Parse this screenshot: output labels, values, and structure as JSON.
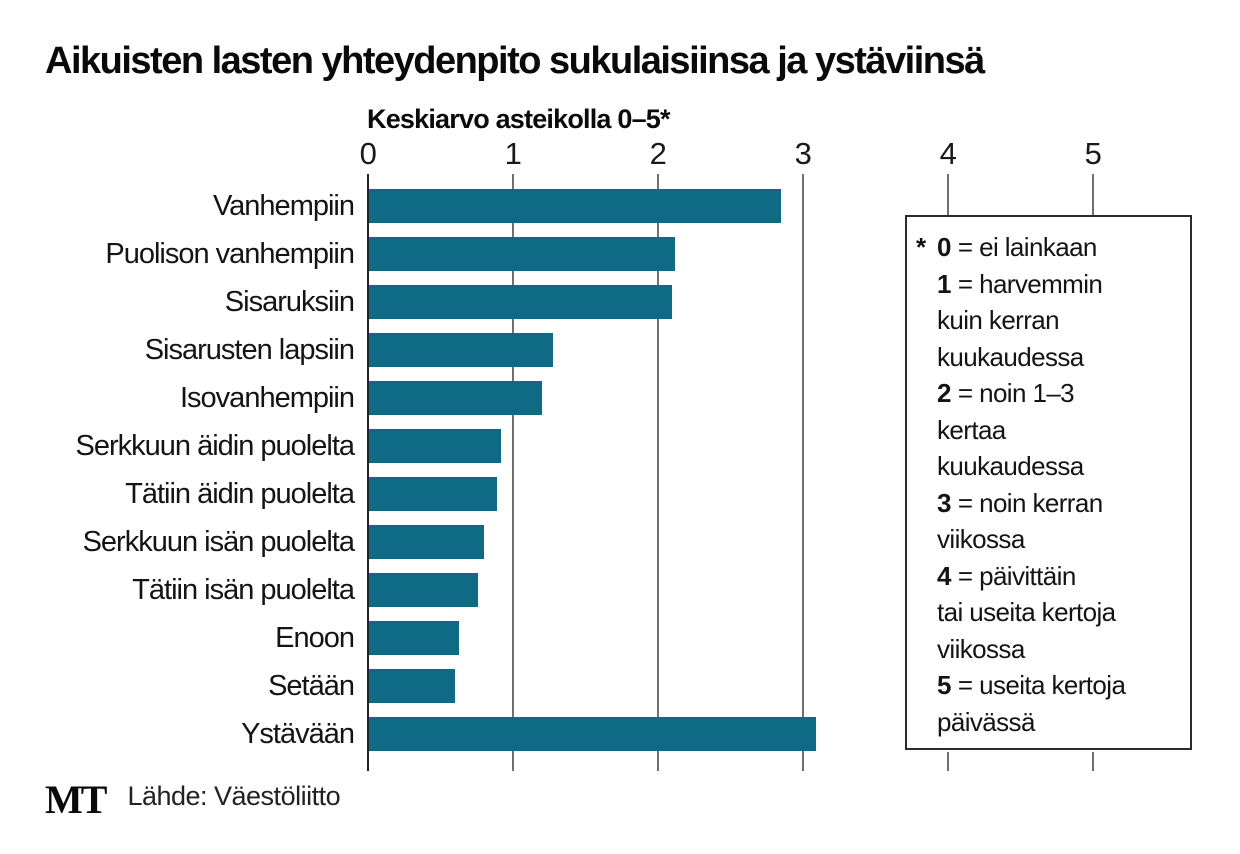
{
  "title": "Aikuisten lasten yhteydenpito sukulaisiinsa ja ystäviinsä",
  "chart_data": {
    "type": "bar",
    "orientation": "horizontal",
    "subtitle": "Keskiarvo asteikolla 0–5*",
    "categories": [
      "Vanhempiin",
      "Puolison vanhempiin",
      "Sisaruksiin",
      "Sisarusten lapsiin",
      "Isovanhempiin",
      "Serkkuun äidin puolelta",
      "Tätiin äidin puolelta",
      "Serkkuun isän puolelta",
      "Tätiin isän puolelta",
      "Enoon",
      "Setään",
      "Ystävään"
    ],
    "values": [
      2.84,
      2.11,
      2.09,
      1.27,
      1.19,
      0.91,
      0.88,
      0.79,
      0.75,
      0.62,
      0.59,
      3.08
    ],
    "x_ticks": [
      "0",
      "1",
      "2",
      "3",
      "4",
      "5"
    ],
    "xlim": [
      0,
      5
    ],
    "grid": true,
    "bar_color": "#0e6a85",
    "legend_position": "right"
  },
  "legend": {
    "entries": [
      {
        "star": "*",
        "num": "0",
        "first": "= ei lainkaan"
      },
      {
        "num": "1",
        "first": "= harvemmin",
        "cont": [
          "kuin kerran",
          "kuukaudessa"
        ]
      },
      {
        "num": "2",
        "first": "= noin 1–3",
        "cont": [
          "kertaa",
          "kuukaudessa"
        ]
      },
      {
        "num": "3",
        "first": "= noin kerran",
        "cont": [
          "viikossa"
        ]
      },
      {
        "num": "4",
        "first": "= päivittäin",
        "cont": [
          "tai useita kertoja",
          "viikossa"
        ]
      },
      {
        "num": "5",
        "first": "= useita kertoja",
        "cont": [
          "päivässä"
        ]
      }
    ]
  },
  "footer": {
    "logo": "MT",
    "source": "Lähde: Väestöliitto"
  }
}
